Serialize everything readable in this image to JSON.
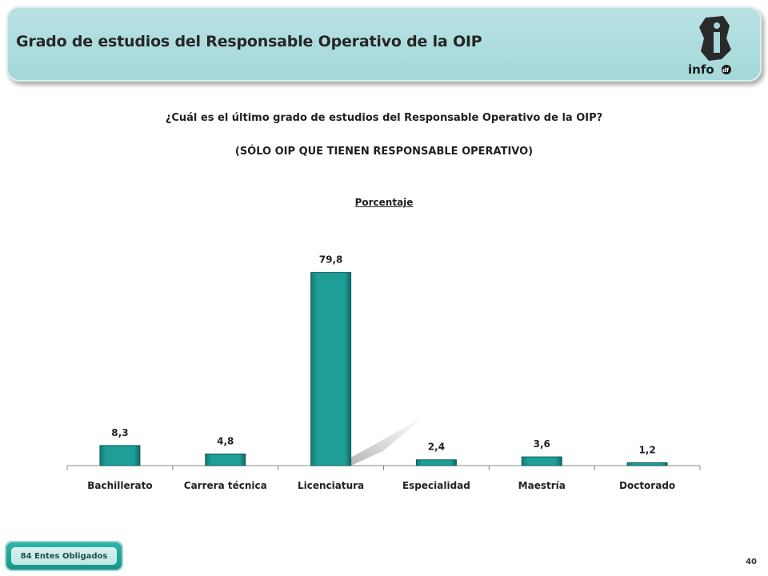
{
  "header": {
    "title": "Grado de estudios del Responsable Operativo de la OIP",
    "logo_text": "infodf"
  },
  "question": "¿Cuál es el último grado de estudios del Responsable Operativo de la OIP?",
  "subquestion": "(SÓLO OIP QUE TIENEN RESPONSABLE OPERATIVO)",
  "percent_label": "Porcentaje",
  "chart_data": {
    "type": "bar",
    "title": "",
    "xlabel": "",
    "ylabel": "",
    "categories": [
      "Bachillerato",
      "Carrera técnica",
      "Licenciatura",
      "Especialidad",
      "Maestría",
      "Doctorado"
    ],
    "values": [
      8.3,
      4.8,
      79.8,
      2.4,
      3.6,
      1.2
    ],
    "data_labels": [
      "8,3",
      "4,8",
      "79,8",
      "2,4",
      "3,6",
      "1,2"
    ],
    "ylim": [
      0,
      80
    ],
    "grid": false,
    "bar_color": "#1e9e96"
  },
  "footer": {
    "badge": "84 Entes Obligados",
    "page_number": "40"
  },
  "colors": {
    "header_bg": "#a5d8da",
    "bar": "#1e9e96",
    "badge": "#15958a"
  }
}
